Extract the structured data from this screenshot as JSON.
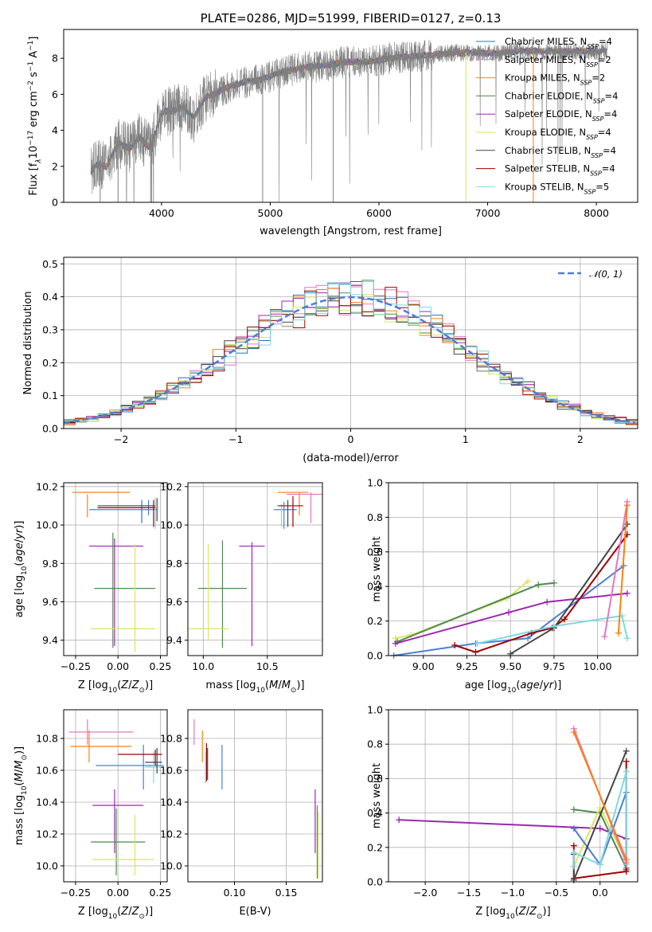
{
  "chart_data": [
    {
      "id": "spectrum",
      "type": "line",
      "title": "PLATE=0286, MJD=51999, FIBERID=0127, z=0.13",
      "xlabel": "wavelength [Angstrom, rest frame]",
      "ylabel": "Flux [f_λ10^-17 erg cm^-2 s^-1 A^-1]",
      "xlim": [
        3100,
        8380
      ],
      "ylim": [
        0,
        9.6
      ],
      "xticks": [
        4000,
        5000,
        6000,
        7000,
        8000
      ],
      "yticks": [
        0,
        2,
        4,
        6,
        8
      ],
      "legend_position": "top-right",
      "grid": false,
      "data_color": "#808080",
      "data_anchors": [
        [
          3350,
          1.7
        ],
        [
          3400,
          2.1
        ],
        [
          3500,
          2.0
        ],
        [
          3600,
          3.3
        ],
        [
          3700,
          3.0
        ],
        [
          3800,
          3.6
        ],
        [
          3900,
          3.0
        ],
        [
          4000,
          5.0
        ],
        [
          4100,
          5.1
        ],
        [
          4200,
          5.3
        ],
        [
          4300,
          4.7
        ],
        [
          4400,
          5.8
        ],
        [
          4500,
          6.1
        ],
        [
          4700,
          6.6
        ],
        [
          4900,
          6.8
        ],
        [
          5100,
          7.2
        ],
        [
          5300,
          7.5
        ],
        [
          5500,
          7.6
        ],
        [
          5700,
          7.8
        ],
        [
          5900,
          7.8
        ],
        [
          6100,
          8.0
        ],
        [
          6300,
          8.1
        ],
        [
          6500,
          8.2
        ],
        [
          6700,
          8.3
        ],
        [
          6900,
          8.3
        ],
        [
          7100,
          8.3
        ],
        [
          7300,
          8.4
        ],
        [
          7500,
          8.4
        ],
        [
          7700,
          8.4
        ],
        [
          7900,
          8.4
        ],
        [
          8100,
          8.4
        ]
      ],
      "series": [
        {
          "name": "Chabrier MILES, N_SSP=4",
          "color": "#1f77b4"
        },
        {
          "name": "Salpeter MILES, N_SSP=2",
          "color": "#e377c2"
        },
        {
          "name": "Kroupa MILES, N_SSP=2",
          "color": "#ff7f0e"
        },
        {
          "name": "Chabrier ELODIE, N_SSP=4",
          "color": "#4e8a4e"
        },
        {
          "name": "Salpeter ELODIE, N_SSP=4",
          "color": "#9c27b0"
        },
        {
          "name": "Kroupa ELODIE, N_SSP=4",
          "color": "#dbe55c"
        },
        {
          "name": "Chabrier STELIB, N_SSP=4",
          "color": "#444444"
        },
        {
          "name": "Salpeter STELIB, N_SSP=4",
          "color": "#a00000"
        },
        {
          "name": "Kroupa STELIB, N_SSP=5",
          "color": "#7fd8e0"
        }
      ]
    },
    {
      "id": "residuals",
      "type": "histogram",
      "xlabel": "(data-model)/error",
      "ylabel": "Normed distribution",
      "xlim": [
        -2.5,
        2.5
      ],
      "ylim": [
        0,
        0.52
      ],
      "xticks": [
        -2,
        -1,
        0,
        1,
        2
      ],
      "yticks": [
        0.0,
        0.1,
        0.2,
        0.3,
        0.4,
        0.5
      ],
      "grid": true,
      "legend_position": "top-right",
      "reference_curve": {
        "name": "𝒩(0, 1)",
        "mean": 0,
        "sigma": 1,
        "color": "#4a7fd6"
      },
      "bin_width": 0.1,
      "bin_start": -2.5,
      "series_colors": [
        "#1f77b4",
        "#e377c2",
        "#ff7f0e",
        "#4e8a4e",
        "#9c27b0",
        "#dbe55c",
        "#444444",
        "#a00000",
        "#7fd8e0"
      ]
    },
    {
      "id": "age-vs-Z",
      "type": "errorbar",
      "xlabel": "Z [log10(Z/Z⊙)]",
      "ylabel": "age  [log10(age/yr)]",
      "xlim": [
        -0.32,
        0.29
      ],
      "ylim": [
        9.32,
        10.22
      ],
      "xticks": [
        -0.25,
        0.0,
        0.25
      ],
      "xticklabels": [
        "−0.25",
        "0.00",
        "0.25"
      ],
      "yticks": [
        9.4,
        9.6,
        9.8,
        10.0,
        10.2
      ],
      "grid": true,
      "points": [
        {
          "x": -0.1,
          "xerr": 0.17,
          "y": 10.17,
          "yerr": 0.0,
          "color": "#e377c2"
        },
        {
          "x": -0.1,
          "xerr": 0.17,
          "y": 10.17,
          "yerr": 0.0,
          "color": "#ff7f0e"
        },
        {
          "x": -0.18,
          "xerr": 0.0,
          "y": 10.1,
          "yerr": 0.06,
          "color": "#ff7f0e"
        },
        {
          "x": 0.03,
          "xerr": 0.2,
          "y": 10.08,
          "yerr": 0.0,
          "color": "#4a7fd6"
        },
        {
          "x": 0.18,
          "xerr": 0.0,
          "y": 10.09,
          "yerr": 0.04,
          "color": "#4a7fd6"
        },
        {
          "x": 0.14,
          "xerr": 0.0,
          "y": 10.07,
          "yerr": 0.06,
          "color": "#1f77b4"
        },
        {
          "x": 0.22,
          "xerr": 0.0,
          "y": 10.06,
          "yerr": 0.08,
          "color": "#7fd8e0"
        },
        {
          "x": 0.05,
          "xerr": 0.17,
          "y": 10.1,
          "yerr": 0.0,
          "color": "#444444"
        },
        {
          "x": 0.23,
          "xerr": 0.0,
          "y": 10.08,
          "yerr": 0.06,
          "color": "#444444"
        },
        {
          "x": 0.05,
          "xerr": 0.17,
          "y": 10.09,
          "yerr": 0.0,
          "color": "#a00000"
        },
        {
          "x": 0.21,
          "xerr": 0.0,
          "y": 10.06,
          "yerr": 0.07,
          "color": "#a00000"
        },
        {
          "x": -0.01,
          "xerr": 0.16,
          "y": 9.89,
          "yerr": 0.0,
          "color": "#9c27b0"
        },
        {
          "x": -0.02,
          "xerr": 0.0,
          "y": 9.65,
          "yerr": 0.28,
          "color": "#9c27b0"
        },
        {
          "x": 0.04,
          "xerr": 0.18,
          "y": 9.67,
          "yerr": 0.0,
          "color": "#4e8a4e"
        },
        {
          "x": -0.03,
          "xerr": 0.0,
          "y": 9.66,
          "yerr": 0.3,
          "color": "#4e8a4e"
        },
        {
          "x": 0.03,
          "xerr": 0.19,
          "y": 9.46,
          "yerr": 0.0,
          "color": "#dbe55c"
        },
        {
          "x": 0.1,
          "xerr": 0.0,
          "y": 9.62,
          "yerr": 0.28,
          "color": "#dbe55c"
        }
      ]
    },
    {
      "id": "age-vs-mass",
      "type": "errorbar",
      "xlabel": "mass [log10(M/M⊙)]",
      "ylabel": "",
      "xlim": [
        9.88,
        10.93
      ],
      "ylim": [
        9.32,
        10.22
      ],
      "xticks": [
        10.0,
        10.5
      ],
      "xticklabels": [
        "10.0",
        "10.5"
      ],
      "yticks": [
        9.4,
        9.6,
        9.8,
        10.0,
        10.2
      ],
      "grid": true,
      "points": [
        {
          "x": 10.79,
          "xerr": 0.14,
          "y": 10.16,
          "yerr": 0.0,
          "color": "#e377c2"
        },
        {
          "x": 10.84,
          "xerr": 0.0,
          "y": 10.09,
          "yerr": 0.08,
          "color": "#e377c2"
        },
        {
          "x": 10.7,
          "xerr": 0.12,
          "y": 10.17,
          "yerr": 0.0,
          "color": "#ff7f0e"
        },
        {
          "x": 10.75,
          "xerr": 0.0,
          "y": 10.11,
          "yerr": 0.06,
          "color": "#ff7f0e"
        },
        {
          "x": 10.64,
          "xerr": 0.09,
          "y": 10.08,
          "yerr": 0.0,
          "color": "#4a7fd6"
        },
        {
          "x": 10.63,
          "xerr": 0.0,
          "y": 10.05,
          "yerr": 0.07,
          "color": "#4a7fd6"
        },
        {
          "x": 10.61,
          "xerr": 0.0,
          "y": 10.05,
          "yerr": 0.06,
          "color": "#7fd8e0"
        },
        {
          "x": 10.66,
          "xerr": 0.0,
          "y": 10.06,
          "yerr": 0.07,
          "color": "#444444"
        },
        {
          "x": 10.7,
          "xerr": 0.0,
          "y": 10.07,
          "yerr": 0.08,
          "color": "#a00000"
        },
        {
          "x": 10.68,
          "xerr": 0.1,
          "y": 10.1,
          "yerr": 0.0,
          "color": "#a00000"
        },
        {
          "x": 10.38,
          "xerr": 0.1,
          "y": 9.89,
          "yerr": 0.0,
          "color": "#9c27b0"
        },
        {
          "x": 10.38,
          "xerr": 0.0,
          "y": 9.64,
          "yerr": 0.27,
          "color": "#9c27b0"
        },
        {
          "x": 10.15,
          "xerr": 0.19,
          "y": 9.67,
          "yerr": 0.0,
          "color": "#4e8a4e"
        },
        {
          "x": 10.15,
          "xerr": 0.0,
          "y": 9.64,
          "yerr": 0.28,
          "color": "#4e8a4e"
        },
        {
          "x": 10.04,
          "xerr": 0.16,
          "y": 9.46,
          "yerr": 0.0,
          "color": "#dbe55c"
        },
        {
          "x": 10.04,
          "xerr": 0.0,
          "y": 9.65,
          "yerr": 0.25,
          "color": "#dbe55c"
        }
      ]
    },
    {
      "id": "weight-vs-age",
      "type": "line",
      "xlabel": "age  [log10(age/yr)]",
      "ylabel": "mass weight",
      "xlim": [
        8.8,
        10.23
      ],
      "ylim": [
        0,
        1.0
      ],
      "xticks": [
        9.0,
        9.5,
        10.0
      ],
      "xticklabels": [
        "9.00",
        "9.25",
        "9.50",
        "9.75",
        "10.00"
      ],
      "xticks_full": [
        9.0,
        9.25,
        9.5,
        9.75,
        10.0
      ],
      "yticks": [
        0.0,
        0.2,
        0.4,
        0.6,
        0.8,
        1.0
      ],
      "grid": true,
      "series": [
        {
          "color": "#dbe55c",
          "x": [
            8.84,
            8.93,
            9.48,
            9.6
          ],
          "y": [
            0.1,
            0.12,
            0.33,
            0.43
          ]
        },
        {
          "color": "#4e8a4e",
          "x": [
            8.85,
            9.66,
            9.75
          ],
          "y": [
            0.08,
            0.41,
            0.42
          ]
        },
        {
          "color": "#9c27b0",
          "x": [
            8.84,
            9.49,
            9.71,
            10.17
          ],
          "y": [
            0.07,
            0.25,
            0.31,
            0.36
          ]
        },
        {
          "color": "#4a7fd6",
          "x": [
            8.83,
            9.3,
            9.6,
            10.15
          ],
          "y": [
            0.0,
            0.07,
            0.1,
            0.52
          ]
        },
        {
          "color": "#a00000",
          "x": [
            9.18,
            9.3,
            9.62,
            9.74,
            9.81,
            10.17
          ],
          "y": [
            0.06,
            0.02,
            0.13,
            0.16,
            0.21,
            0.7
          ]
        },
        {
          "color": "#444444",
          "x": [
            9.5,
            9.75,
            10.17
          ],
          "y": [
            0.01,
            0.16,
            0.76
          ]
        },
        {
          "color": "#7fd8e0",
          "x": [
            9.31,
            9.75,
            10.14,
            10.17
          ],
          "y": [
            0.07,
            0.17,
            0.23,
            0.1
          ]
        },
        {
          "color": "#e377c2",
          "x": [
            10.04,
            10.17
          ],
          "y": [
            0.11,
            0.89
          ]
        },
        {
          "color": "#ff7f0e",
          "x": [
            10.12,
            10.17
          ],
          "y": [
            0.13,
            0.87
          ]
        }
      ]
    },
    {
      "id": "mass-vs-Z",
      "type": "errorbar",
      "xlabel": "Z [log10(Z/Z⊙)]",
      "ylabel": "mass [log10(M/M⊙)]",
      "xlim": [
        -0.32,
        0.29
      ],
      "ylim": [
        9.9,
        10.98
      ],
      "xticks": [
        -0.25,
        0.0,
        0.25
      ],
      "xticklabels": [
        "−0.25",
        "0.00",
        "0.25"
      ],
      "yticks": [
        10.0,
        10.2,
        10.4,
        10.6,
        10.8
      ],
      "grid": true,
      "points": [
        {
          "x": -0.1,
          "xerr": 0.19,
          "y": 10.84,
          "yerr": 0.0,
          "color": "#e377c2"
        },
        {
          "x": -0.18,
          "xerr": 0.0,
          "y": 10.84,
          "yerr": 0.08,
          "color": "#e377c2"
        },
        {
          "x": -0.1,
          "xerr": 0.18,
          "y": 10.75,
          "yerr": 0.0,
          "color": "#ff7f0e"
        },
        {
          "x": -0.17,
          "xerr": 0.0,
          "y": 10.75,
          "yerr": 0.1,
          "color": "#ff7f0e"
        },
        {
          "x": 0.07,
          "xerr": 0.2,
          "y": 10.63,
          "yerr": 0.0,
          "color": "#4a7fd6"
        },
        {
          "x": 0.15,
          "xerr": 0.0,
          "y": 10.62,
          "yerr": 0.14,
          "color": "#4a7fd6"
        },
        {
          "x": 0.21,
          "xerr": 0.05,
          "y": 10.62,
          "yerr": 0.0,
          "color": "#7fd8e0"
        },
        {
          "x": 0.21,
          "xerr": 0.0,
          "y": 10.62,
          "yerr": 0.1,
          "color": "#7fd8e0"
        },
        {
          "x": 0.21,
          "xerr": 0.05,
          "y": 10.65,
          "yerr": 0.0,
          "color": "#444444"
        },
        {
          "x": 0.23,
          "xerr": 0.0,
          "y": 10.66,
          "yerr": 0.08,
          "color": "#444444"
        },
        {
          "x": 0.13,
          "xerr": 0.13,
          "y": 10.7,
          "yerr": 0.0,
          "color": "#a00000"
        },
        {
          "x": 0.22,
          "xerr": 0.0,
          "y": 10.68,
          "yerr": 0.05,
          "color": "#a00000"
        },
        {
          "x": 0.0,
          "xerr": 0.15,
          "y": 10.38,
          "yerr": 0.0,
          "color": "#9c27b0"
        },
        {
          "x": -0.02,
          "xerr": 0.0,
          "y": 10.28,
          "yerr": 0.2,
          "color": "#9c27b0"
        },
        {
          "x": 0.0,
          "xerr": 0.16,
          "y": 10.15,
          "yerr": 0.0,
          "color": "#4e8a4e"
        },
        {
          "x": -0.01,
          "xerr": 0.0,
          "y": 10.15,
          "yerr": 0.21,
          "color": "#4e8a4e"
        },
        {
          "x": 0.03,
          "xerr": 0.18,
          "y": 10.04,
          "yerr": 0.0,
          "color": "#dbe55c"
        },
        {
          "x": 0.1,
          "xerr": 0.0,
          "y": 10.13,
          "yerr": 0.19,
          "color": "#dbe55c"
        }
      ]
    },
    {
      "id": "mass-vs-EBV",
      "type": "errorbar",
      "xlabel": "E(B-V)",
      "ylabel": "",
      "xlim": [
        0.055,
        0.185
      ],
      "ylim": [
        9.9,
        10.98
      ],
      "xticks": [
        0.1,
        0.15
      ],
      "xticklabels": [
        "0.10",
        "0.15"
      ],
      "yticks": [
        10.0,
        10.2,
        10.4,
        10.6,
        10.8
      ],
      "grid": true,
      "points": [
        {
          "x": 0.061,
          "xerr": 0.0,
          "y": 10.84,
          "yerr": 0.08,
          "color": "#e377c2"
        },
        {
          "x": 0.069,
          "xerr": 0.0,
          "y": 10.75,
          "yerr": 0.1,
          "color": "#ff7f0e"
        },
        {
          "x": 0.073,
          "xerr": 0.0,
          "y": 10.65,
          "yerr": 0.12,
          "color": "#a00000"
        },
        {
          "x": 0.074,
          "xerr": 0.0,
          "y": 10.64,
          "yerr": 0.1,
          "color": "#444444"
        },
        {
          "x": 0.072,
          "xerr": 0.0,
          "y": 10.62,
          "yerr": 0.1,
          "color": "#7fd8e0"
        },
        {
          "x": 0.088,
          "xerr": 0.0,
          "y": 10.62,
          "yerr": 0.14,
          "color": "#4a7fd6"
        },
        {
          "x": 0.178,
          "xerr": 0.0,
          "y": 10.28,
          "yerr": 0.2,
          "color": "#9c27b0"
        },
        {
          "x": 0.18,
          "xerr": 0.0,
          "y": 10.15,
          "yerr": 0.23,
          "color": "#4e8a4e"
        },
        {
          "x": 0.181,
          "xerr": 0.0,
          "y": 10.13,
          "yerr": 0.21,
          "color": "#dbe55c"
        }
      ]
    },
    {
      "id": "weight-vs-Z",
      "type": "line",
      "xlabel": "Z [log10(Z/Z⊙)]",
      "ylabel": "mass weight",
      "xlim": [
        -2.42,
        0.43
      ],
      "ylim": [
        0,
        1.0
      ],
      "xticks": [
        -2.0,
        -1.5,
        -1.0,
        -0.5,
        0.0
      ],
      "xticklabels": [
        "−2.0",
        "−1.5",
        "−1.0",
        "−0.5",
        "0.0"
      ],
      "yticks": [
        0.0,
        0.2,
        0.4,
        0.6,
        0.8,
        1.0
      ],
      "grid": true,
      "series": [
        {
          "color": "#9c27b0",
          "x": [
            -2.3,
            0.0,
            0.3,
            0.3
          ],
          "y": [
            0.36,
            0.31,
            0.25,
            0.07
          ]
        },
        {
          "color": "#4e8a4e",
          "x": [
            -0.3,
            0.0,
            0.3
          ],
          "y": [
            0.42,
            0.4,
            0.08
          ]
        },
        {
          "color": "#dbe55c",
          "x": [
            -0.3,
            0.0,
            0.3
          ],
          "y": [
            0.09,
            0.43,
            0.12
          ]
        },
        {
          "color": "#4a7fd6",
          "x": [
            -0.3,
            0.0,
            0.3
          ],
          "y": [
            0.31,
            0.1,
            0.52
          ]
        },
        {
          "color": "#a00000",
          "x": [
            -0.3,
            -0.3,
            0.3,
            0.3
          ],
          "y": [
            0.21,
            0.02,
            0.06,
            0.7
          ]
        },
        {
          "color": "#444444",
          "x": [
            -0.3,
            -0.3,
            0.3
          ],
          "y": [
            0.16,
            0.01,
            0.76
          ]
        },
        {
          "color": "#7fd8e0",
          "x": [
            -0.3,
            -0.3,
            0.0,
            0.3,
            0.3
          ],
          "y": [
            0.09,
            0.17,
            0.1,
            0.64,
            0.1
          ]
        },
        {
          "color": "#e377c2",
          "x": [
            -0.3,
            0.3
          ],
          "y": [
            0.89,
            0.11
          ]
        },
        {
          "color": "#ff7f0e",
          "x": [
            -0.3,
            0.3
          ],
          "y": [
            0.87,
            0.13
          ]
        }
      ]
    }
  ]
}
